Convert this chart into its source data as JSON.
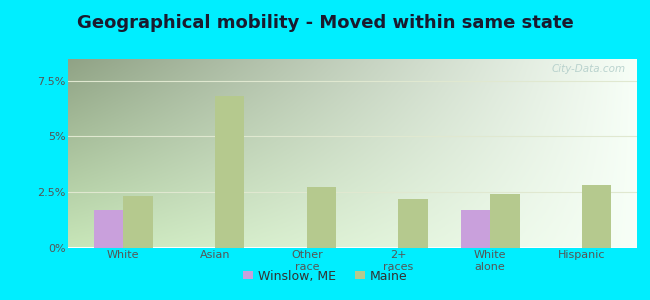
{
  "title": "Geographical mobility - Moved within same state",
  "categories": [
    "White",
    "Asian",
    "Other\nrace",
    "2+\nraces",
    "White\nalone",
    "Hispanic"
  ],
  "winslow_values": [
    1.7,
    0.0,
    0.0,
    0.0,
    1.7,
    0.0
  ],
  "maine_values": [
    2.3,
    6.8,
    2.7,
    2.2,
    2.4,
    2.8
  ],
  "winslow_color": "#c9a0dc",
  "maine_color": "#b5c98e",
  "ylim": [
    0,
    8.5
  ],
  "yticks": [
    0,
    2.5,
    5.0,
    7.5
  ],
  "ytick_labels": [
    "0%",
    "2.5%",
    "5%",
    "7.5%"
  ],
  "outer_bg": "#00eeff",
  "legend_label1": "Winslow, ME",
  "legend_label2": "Maine",
  "watermark": "City-Data.com",
  "bar_width": 0.32,
  "title_fontsize": 13,
  "tick_fontsize": 8,
  "legend_fontsize": 9,
  "title_color": "#1a1a2e",
  "tick_color": "#555555",
  "grid_color": "#e0e8d0"
}
